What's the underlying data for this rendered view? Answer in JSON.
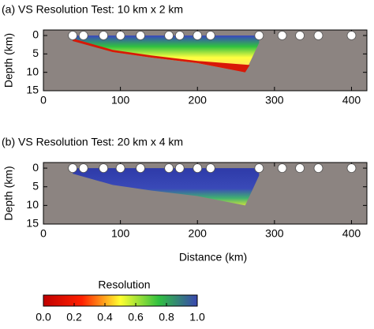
{
  "chart_data": [
    {
      "type": "scatter",
      "title": "(a) VS Resolution Test: 10 km x 2 km",
      "ylabel": "Depth (km)",
      "x": [
        38,
        52,
        78,
        100,
        126,
        163,
        177,
        200,
        217,
        280,
        310,
        333,
        357,
        400
      ],
      "values": [
        0,
        0,
        0,
        0,
        0,
        0,
        0,
        0,
        0,
        0,
        0,
        0,
        0,
        0
      ],
      "color": "#ffffff",
      "xlim": [
        0,
        420
      ],
      "ylim": [
        15,
        -1.5
      ],
      "xticks": [
        0,
        100,
        200,
        300,
        400
      ],
      "yticks": [
        0,
        5,
        10,
        15
      ]
    },
    {
      "type": "scatter",
      "title": "(b) VS Resolution Test: 20 km x 4 km",
      "ylabel": "Depth (km)",
      "xlabel": "Distance (km)",
      "x": [
        38,
        52,
        78,
        100,
        126,
        163,
        177,
        200,
        217,
        280,
        310,
        333,
        357,
        400
      ],
      "values": [
        0,
        0,
        0,
        0,
        0,
        0,
        0,
        0,
        0,
        0,
        0,
        0,
        0,
        0
      ],
      "color": "#ffffff",
      "xlim": [
        0,
        420
      ],
      "ylim": [
        15,
        -1.5
      ],
      "xticks": [
        0,
        100,
        200,
        300,
        400
      ],
      "yticks": [
        0,
        5,
        10,
        15
      ]
    },
    {
      "type": "colorbar",
      "title": "Resolution",
      "xlim": [
        0,
        1
      ],
      "xticks": [
        {
          "value": 0,
          "label": "0.0"
        },
        {
          "value": 0.2,
          "label": "0.2"
        },
        {
          "value": 0.4,
          "label": "0.4"
        },
        {
          "value": 0.6,
          "label": "0.6"
        },
        {
          "value": 0.8,
          "label": "0.8"
        },
        {
          "value": 1,
          "label": "1.0"
        }
      ],
      "colors": [
        "#c00000",
        "#ff2000",
        "#ffff30",
        "#30c040",
        "#3a46b0"
      ]
    }
  ]
}
